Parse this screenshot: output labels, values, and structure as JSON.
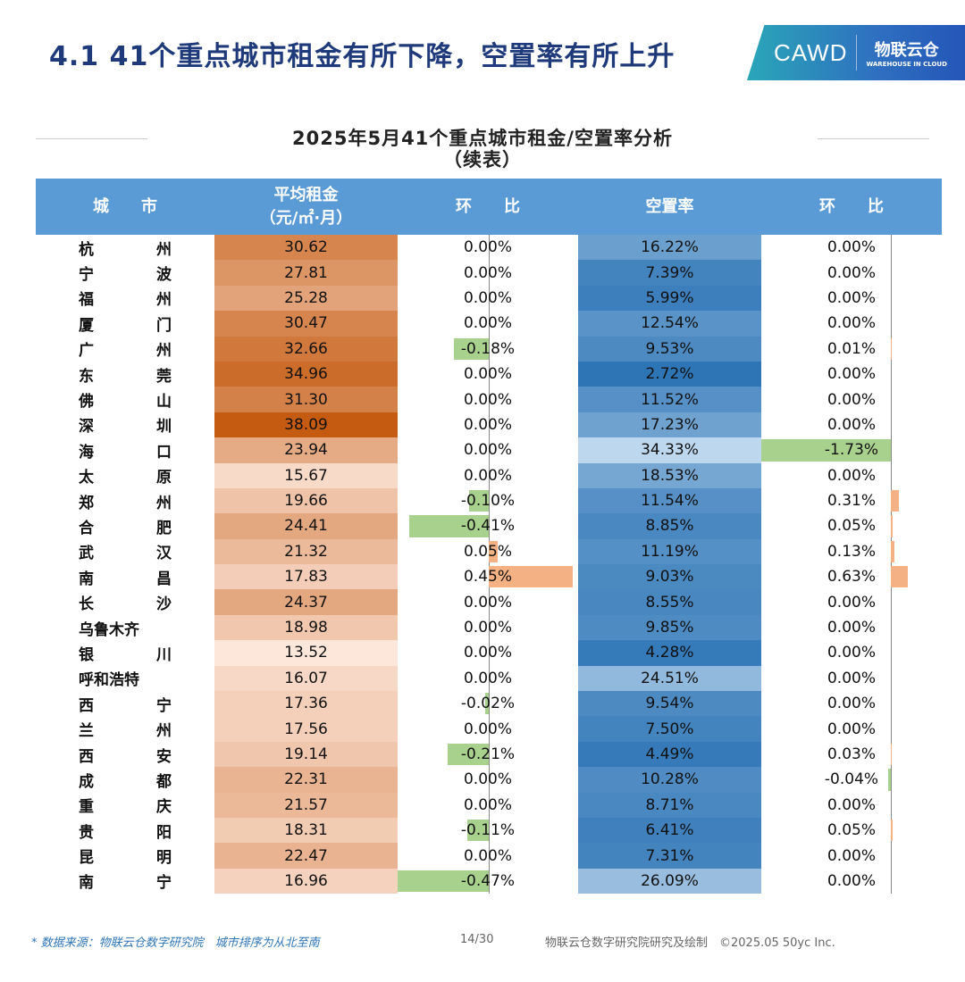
{
  "title": "4.1 41个重点城市租金有所下降，空置率有所上升",
  "logo": {
    "left": "CAWD",
    "right": "物联云仓",
    "right_sub": "WAREHOUSE IN CLOUD"
  },
  "chart_data": {
    "type": "table",
    "title": "2025年5月41个重点城市租金/空置率分析",
    "subtitle": "（续表）",
    "columns": [
      "城　　市",
      "平均租金\n（元/㎡·月）",
      "环　　比",
      "空置率",
      "环　　比"
    ],
    "colors": {
      "header": "#5b9bd5",
      "rent_high": "#c55a11",
      "rent_low": "#fde6da",
      "vac_low": "#2e75b6",
      "vac_high": "#bdd7ee",
      "negative": "#a9d18e",
      "positive": "#f4b183"
    },
    "rows": [
      [
        "杭州",
        30.62,
        0.0,
        16.22,
        0.0
      ],
      [
        "宁波",
        27.81,
        0.0,
        7.39,
        0.0
      ],
      [
        "福州",
        25.28,
        0.0,
        5.99,
        0.0
      ],
      [
        "厦门",
        30.47,
        0.0,
        12.54,
        0.0
      ],
      [
        "广州",
        32.66,
        -0.18,
        9.53,
        0.01
      ],
      [
        "东莞",
        34.96,
        0.0,
        2.72,
        0.0
      ],
      [
        "佛山",
        31.3,
        0.0,
        11.52,
        0.0
      ],
      [
        "深圳",
        38.09,
        0.0,
        17.23,
        0.0
      ],
      [
        "海口",
        23.94,
        0.0,
        34.33,
        -1.73
      ],
      [
        "太原",
        15.67,
        0.0,
        18.53,
        0.0
      ],
      [
        "郑州",
        19.66,
        -0.1,
        11.54,
        0.31
      ],
      [
        "合肥",
        24.41,
        -0.41,
        8.85,
        0.05
      ],
      [
        "武汉",
        21.32,
        0.05,
        11.19,
        0.13
      ],
      [
        "南昌",
        17.83,
        0.45,
        9.03,
        0.63
      ],
      [
        "长沙",
        24.37,
        0.0,
        8.55,
        0.0
      ],
      [
        "乌鲁木齐",
        18.98,
        0.0,
        9.85,
        0.0
      ],
      [
        "银川",
        13.52,
        0.0,
        4.28,
        0.0
      ],
      [
        "呼和浩特",
        16.07,
        0.0,
        24.51,
        0.0
      ],
      [
        "西宁",
        17.36,
        -0.02,
        9.54,
        0.0
      ],
      [
        "兰州",
        17.56,
        0.0,
        7.5,
        0.0
      ],
      [
        "西安",
        19.14,
        -0.21,
        4.49,
        0.03
      ],
      [
        "成都",
        22.31,
        0.0,
        10.28,
        -0.04
      ],
      [
        "重庆",
        21.57,
        0.0,
        8.71,
        0.0
      ],
      [
        "贵阳",
        18.31,
        -0.11,
        6.41,
        0.05
      ],
      [
        "昆明",
        22.47,
        0.0,
        7.31,
        0.0
      ],
      [
        "南宁",
        16.96,
        -0.47,
        26.09,
        0.0
      ]
    ]
  },
  "footer": {
    "source": "* 数据来源：物联云仓数字研究院　城市排序为从北至南",
    "page": "14/30",
    "credit": "物联云仓数字研究院研究及绘制　©2025.05 50yc Inc."
  }
}
